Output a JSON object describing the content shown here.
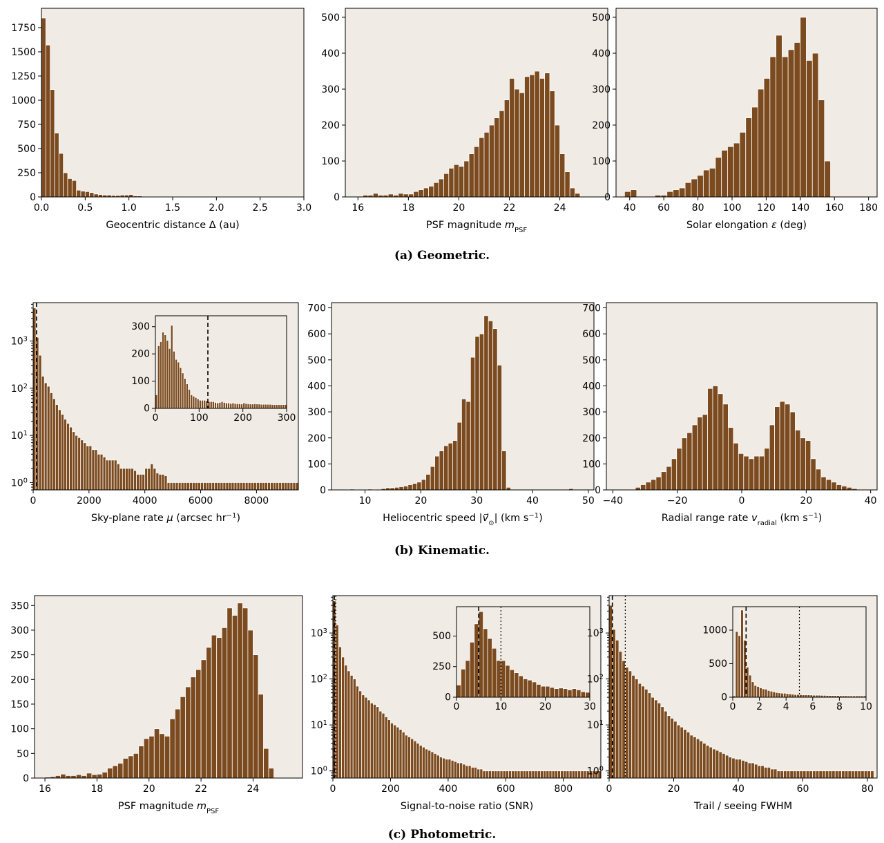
{
  "colors": {
    "bar": "#7b4a1e",
    "panel_bg": "#f0ebe4"
  },
  "captions": {
    "a": {
      "label": "(a)",
      "text": "Geometric."
    },
    "b": {
      "label": "(b)",
      "text": "Kinematic."
    },
    "c": {
      "label": "(c)",
      "text": "Photometric."
    }
  },
  "chart_data": [
    {
      "id": "geocentric",
      "type": "bar",
      "scale": "linear",
      "xlabel_parts": [
        "Geocentric distance Δ (au)"
      ],
      "xlim": [
        0,
        3
      ],
      "ylim": [
        0,
        1950
      ],
      "xticks": [
        0,
        0.5,
        1,
        1.5,
        2,
        2.5,
        3
      ],
      "xtick_labels": [
        "0.0",
        "0.5",
        "1.0",
        "1.5",
        "2.0",
        "2.5",
        "3.0"
      ],
      "yticks": [
        0,
        250,
        500,
        750,
        1000,
        1250,
        1500,
        1750
      ],
      "ytick_labels": [
        "0",
        "250",
        "500",
        "750",
        "1000",
        "1250",
        "1500",
        "1750"
      ],
      "x0": 0.0,
      "bin_width": 0.05,
      "values": [
        1850,
        1570,
        1110,
        660,
        450,
        250,
        190,
        170,
        70,
        60,
        55,
        45,
        30,
        25,
        20,
        20,
        15,
        15,
        20,
        20,
        25,
        10,
        10,
        5,
        5,
        5,
        5,
        5,
        5,
        5,
        5,
        5,
        5,
        5,
        5,
        5,
        5,
        5,
        5,
        5,
        5,
        5,
        5,
        5,
        5,
        5,
        5,
        5,
        5,
        5,
        5,
        5,
        5,
        5,
        5,
        5,
        5,
        5,
        5,
        5
      ]
    },
    {
      "id": "psf_mag_a",
      "type": "bar",
      "scale": "linear",
      "xlabel_parts": [
        "PSF magnitude ",
        "m",
        "PSF"
      ],
      "xlim": [
        15.5,
        25.9
      ],
      "ylim": [
        0,
        525
      ],
      "xticks": [
        16,
        18,
        20,
        22,
        24
      ],
      "xtick_labels": [
        "16",
        "18",
        "20",
        "22",
        "24"
      ],
      "yticks": [
        0,
        100,
        200,
        300,
        400,
        500
      ],
      "ytick_labels": [
        "0",
        "100",
        "200",
        "300",
        "400",
        "500"
      ],
      "x0": 16.0,
      "bin_width": 0.2,
      "values": [
        2,
        5,
        5,
        10,
        5,
        5,
        8,
        5,
        10,
        8,
        8,
        15,
        20,
        25,
        30,
        40,
        50,
        65,
        80,
        90,
        85,
        100,
        120,
        140,
        165,
        180,
        200,
        220,
        240,
        270,
        330,
        300,
        290,
        335,
        340,
        350,
        330,
        345,
        295,
        200,
        120,
        70,
        25,
        10
      ]
    },
    {
      "id": "elongation",
      "type": "bar",
      "scale": "linear",
      "xlabel_parts": [
        "Solar elongation ",
        "ε",
        " (deg)"
      ],
      "xlim": [
        32,
        185
      ],
      "ylim": [
        0,
        525
      ],
      "xticks": [
        40,
        60,
        80,
        100,
        120,
        140,
        160,
        180
      ],
      "xtick_labels": [
        "40",
        "60",
        "80",
        "100",
        "120",
        "140",
        "160",
        "180"
      ],
      "yticks": [
        0,
        100,
        200,
        300,
        400,
        500
      ],
      "ytick_labels": [
        "0",
        "100",
        "200",
        "300",
        "400",
        "500"
      ],
      "x0": 37.0,
      "bin_width": 3.55,
      "values": [
        15,
        20,
        0,
        0,
        0,
        5,
        5,
        15,
        20,
        25,
        40,
        50,
        60,
        75,
        80,
        110,
        130,
        140,
        150,
        180,
        220,
        250,
        300,
        330,
        390,
        450,
        390,
        410,
        430,
        500,
        380,
        400,
        270,
        100
      ]
    },
    {
      "id": "skyrate",
      "type": "bar",
      "scale": "log",
      "xlabel_parts": [
        "Sky-plane rate ",
        "μ",
        " (arcsec hr",
        "−1",
        ")"
      ],
      "xlim": [
        0,
        9500
      ],
      "ylim": [
        0.7,
        6500
      ],
      "xticks": [
        0,
        2000,
        4000,
        6000,
        8000
      ],
      "xtick_labels": [
        "0",
        "2000",
        "4000",
        "6000",
        "8000"
      ],
      "yticks": [
        1,
        10,
        100,
        1000
      ],
      "ytick_labels": [
        "10^0",
        "10^1",
        "10^2",
        "10^3"
      ],
      "x0": 0,
      "bin_width": 100,
      "values": [
        5000,
        1200,
        500,
        180,
        130,
        110,
        80,
        60,
        45,
        35,
        28,
        22,
        18,
        15,
        12,
        10,
        9,
        8,
        7,
        6,
        6,
        5,
        5,
        4,
        4,
        3.5,
        3,
        3,
        3,
        3,
        2.5,
        2,
        2,
        2,
        2,
        2,
        1.8,
        1.5,
        1.5,
        1.5,
        2,
        2,
        2.5,
        2,
        1.6,
        1.5,
        1.5,
        1.4,
        1,
        1,
        1,
        1,
        1,
        1,
        1,
        1,
        1,
        1,
        1,
        1,
        1,
        1,
        1,
        1,
        1,
        1,
        1,
        1,
        1,
        1,
        1,
        1,
        1,
        1,
        1,
        1,
        1,
        1,
        1,
        1,
        1,
        1,
        1,
        1,
        1,
        1,
        1,
        1,
        1,
        1,
        1,
        1,
        1,
        1,
        1
      ],
      "vlines": [
        {
          "x": 120,
          "style": "dashed"
        }
      ],
      "inset": {
        "xlim": [
          0,
          300
        ],
        "ylim": [
          0,
          340
        ],
        "xticks": [
          0,
          100,
          200,
          300
        ],
        "xtick_labels": [
          "0",
          "100",
          "200",
          "300"
        ],
        "yticks": [
          0,
          100,
          200,
          300
        ],
        "ytick_labels": [
          "0",
          "100",
          "200",
          "300"
        ],
        "x0": 0,
        "bin_width": 5,
        "values": [
          50,
          230,
          245,
          280,
          270,
          250,
          220,
          305,
          210,
          180,
          170,
          150,
          130,
          110,
          90,
          70,
          50,
          45,
          40,
          35,
          30,
          30,
          30,
          28,
          25,
          25,
          25,
          22,
          20,
          22,
          25,
          22,
          20,
          20,
          18,
          20,
          18,
          17,
          17,
          16,
          20,
          18,
          17,
          16,
          16,
          17,
          16,
          16,
          15,
          15,
          15,
          15,
          15,
          14,
          14,
          14,
          14,
          14,
          14,
          14
        ],
        "vlines": [
          {
            "x": 120,
            "style": "dashed"
          }
        ]
      }
    },
    {
      "id": "helio_speed",
      "type": "bar",
      "scale": "linear",
      "xlabel_parts": [
        "Heliocentric speed |",
        "v⃗",
        "⊙",
        "| (km s",
        "−1",
        ")"
      ],
      "xlim": [
        4,
        51
      ],
      "ylim": [
        0,
        720
      ],
      "xticks": [
        10,
        20,
        30,
        40,
        50
      ],
      "xtick_labels": [
        "10",
        "20",
        "30",
        "40",
        "50"
      ],
      "yticks": [
        0,
        100,
        200,
        300,
        400,
        500,
        600,
        700
      ],
      "ytick_labels": [
        "0",
        "100",
        "200",
        "300",
        "400",
        "500",
        "600",
        "700"
      ],
      "x0": 6.5,
      "bin_width": 0.8,
      "values": [
        1,
        3,
        2,
        1,
        2,
        3,
        2,
        1,
        5,
        8,
        8,
        10,
        12,
        15,
        20,
        25,
        30,
        40,
        60,
        90,
        130,
        150,
        170,
        180,
        190,
        260,
        350,
        340,
        510,
        590,
        600,
        670,
        650,
        620,
        480,
        150,
        10,
        0,
        0,
        0,
        0,
        0,
        0,
        0,
        0,
        0,
        0,
        0,
        0,
        0,
        5,
        0,
        0
      ]
    },
    {
      "id": "radial_rate",
      "type": "bar",
      "scale": "linear",
      "xlabel_parts": [
        "Radial range rate ",
        "v",
        "radial",
        " (km s",
        "−1",
        ")"
      ],
      "xlim": [
        -42,
        42
      ],
      "ylim": [
        0,
        720
      ],
      "xticks": [
        -40,
        -20,
        0,
        20,
        40
      ],
      "xtick_labels": [
        "−40",
        "−20",
        "0",
        "20",
        "40"
      ],
      "yticks": [
        0,
        100,
        200,
        300,
        400,
        500,
        600,
        700
      ],
      "ytick_labels": [
        "0",
        "100",
        "200",
        "300",
        "400",
        "500",
        "600",
        "700"
      ],
      "x0": -33.0,
      "bin_width": 1.6,
      "values": [
        10,
        20,
        30,
        40,
        50,
        70,
        90,
        120,
        160,
        200,
        220,
        250,
        280,
        290,
        390,
        400,
        370,
        330,
        240,
        180,
        140,
        130,
        120,
        130,
        130,
        160,
        250,
        320,
        340,
        330,
        300,
        230,
        200,
        190,
        120,
        80,
        50,
        40,
        30,
        20,
        15,
        10,
        5
      ]
    },
    {
      "id": "psf_mag_c",
      "type": "bar",
      "scale": "linear",
      "xlabel_parts": [
        "PSF magnitude ",
        "m",
        "PSF"
      ],
      "xlim": [
        15.6,
        25.9
      ],
      "ylim": [
        0,
        370
      ],
      "xticks": [
        16,
        18,
        20,
        22,
        24
      ],
      "xtick_labels": [
        "16",
        "18",
        "20",
        "22",
        "24"
      ],
      "yticks": [
        0,
        50,
        100,
        150,
        200,
        250,
        300,
        350
      ],
      "ytick_labels": [
        "0",
        "50",
        "100",
        "150",
        "200",
        "250",
        "300",
        "350"
      ],
      "x0": 16.0,
      "bin_width": 0.2,
      "values": [
        2,
        3,
        5,
        8,
        5,
        5,
        7,
        5,
        10,
        7,
        8,
        12,
        20,
        25,
        30,
        40,
        45,
        50,
        65,
        80,
        85,
        100,
        90,
        85,
        120,
        140,
        165,
        185,
        205,
        220,
        240,
        265,
        290,
        285,
        305,
        345,
        330,
        355,
        345,
        300,
        250,
        170,
        60,
        20
      ]
    },
    {
      "id": "snr",
      "type": "bar",
      "scale": "log",
      "xlabel_parts": [
        "Signal-to-noise ratio (SNR)"
      ],
      "xlim": [
        0,
        930
      ],
      "ylim": [
        0.7,
        6500
      ],
      "xticks": [
        0,
        200,
        400,
        600,
        800
      ],
      "xtick_labels": [
        "0",
        "200",
        "400",
        "600",
        "800"
      ],
      "yticks": [
        1,
        10,
        100,
        1000
      ],
      "ytick_labels": [
        "10^0",
        "10^1",
        "10^2",
        "10^3"
      ],
      "x0": 0,
      "bin_width": 10,
      "values": [
        5000,
        1500,
        500,
        300,
        200,
        150,
        120,
        100,
        70,
        55,
        45,
        40,
        35,
        30,
        28,
        25,
        20,
        18,
        15,
        13,
        11,
        10,
        9,
        8,
        7,
        6,
        5.5,
        5,
        4.5,
        4,
        3.6,
        3.3,
        3,
        2.8,
        2.6,
        2.4,
        2.2,
        2,
        1.9,
        1.8,
        1.8,
        1.7,
        1.6,
        1.5,
        1.5,
        1.4,
        1.3,
        1.3,
        1.2,
        1.2,
        1.1,
        1.1,
        1,
        1,
        1,
        1,
        1,
        1,
        1,
        1,
        1,
        1,
        1,
        1,
        1,
        1,
        1,
        1,
        1,
        1,
        1,
        1,
        1,
        1,
        1,
        1,
        1,
        1,
        1,
        1,
        1,
        1,
        1,
        1,
        1,
        1,
        1,
        1,
        1,
        1,
        1,
        1,
        1
      ],
      "inset": {
        "xlim": [
          0,
          30
        ],
        "ylim": [
          0,
          740
        ],
        "xticks": [
          0,
          10,
          20,
          30
        ],
        "xtick_labels": [
          "0",
          "10",
          "20",
          "30"
        ],
        "yticks": [
          0,
          250,
          500
        ],
        "ytick_labels": [
          "0",
          "250",
          "500"
        ],
        "x0": 0,
        "bin_width": 1,
        "values": [
          100,
          230,
          300,
          450,
          600,
          700,
          560,
          480,
          400,
          300,
          300,
          260,
          225,
          200,
          175,
          150,
          140,
          125,
          105,
          90,
          90,
          80,
          70,
          75,
          70,
          60,
          70,
          60,
          45,
          40
        ],
        "vlines": [
          {
            "x": 5,
            "style": "dashed"
          },
          {
            "x": 10,
            "style": "dotted"
          }
        ]
      },
      "vlines": [
        {
          "x": 5,
          "style": "dashed"
        },
        {
          "x": 10,
          "style": "dotted"
        }
      ]
    },
    {
      "id": "trail_fwhm",
      "type": "bar",
      "scale": "log",
      "xlabel_parts": [
        "Trail / seeing FWHM"
      ],
      "xlim": [
        0,
        83
      ],
      "ylim": [
        0.7,
        6500
      ],
      "xticks": [
        0,
        20,
        40,
        60,
        80
      ],
      "xtick_labels": [
        "0",
        "20",
        "40",
        "60",
        "80"
      ],
      "yticks": [
        1,
        10,
        100,
        1000
      ],
      "ytick_labels": [
        "10^0",
        "10^1",
        "10^2",
        "10^3"
      ],
      "x0": 0,
      "bin_width": 1,
      "values": [
        4000,
        1200,
        700,
        400,
        250,
        180,
        150,
        120,
        100,
        80,
        70,
        60,
        50,
        40,
        35,
        30,
        25,
        20,
        16,
        14,
        12,
        10,
        9,
        8,
        7,
        6,
        5.5,
        5,
        4.5,
        4,
        3.6,
        3.3,
        3,
        2.8,
        2.6,
        2.4,
        2.2,
        2,
        1.9,
        1.8,
        1.8,
        1.7,
        1.6,
        1.5,
        1.5,
        1.4,
        1.3,
        1.3,
        1.2,
        1.2,
        1.1,
        1.1,
        1,
        1,
        1,
        1,
        1,
        1,
        1,
        1,
        1,
        1,
        1,
        1,
        1,
        1,
        1,
        1,
        1,
        1,
        1,
        1,
        1,
        1,
        1,
        1,
        1,
        1,
        1,
        1,
        1,
        1
      ],
      "vlines": [
        {
          "x": 1,
          "style": "dashed"
        },
        {
          "x": 5,
          "style": "dotted"
        }
      ],
      "inset": {
        "xlim": [
          0,
          10
        ],
        "ylim": [
          0,
          1350
        ],
        "xticks": [
          0,
          2,
          4,
          6,
          8,
          10
        ],
        "xtick_labels": [
          "0",
          "2",
          "4",
          "6",
          "8",
          "10"
        ],
        "yticks": [
          0,
          500,
          1000
        ],
        "ytick_labels": [
          "0",
          "500",
          "1000"
        ],
        "x0": 0,
        "bin_width": 0.2,
        "values": [
          20,
          980,
          920,
          1300,
          850,
          450,
          330,
          230,
          175,
          160,
          140,
          125,
          120,
          100,
          90,
          80,
          70,
          65,
          60,
          60,
          55,
          50,
          45,
          40,
          40,
          38,
          35,
          35,
          35,
          33,
          30,
          30,
          30,
          28,
          28,
          26,
          25,
          25,
          24,
          24,
          22,
          22,
          22,
          20,
          20,
          20,
          20,
          20,
          20,
          20
        ],
        "vlines": [
          {
            "x": 1,
            "style": "dashed"
          },
          {
            "x": 5,
            "style": "dotted"
          }
        ]
      }
    }
  ]
}
